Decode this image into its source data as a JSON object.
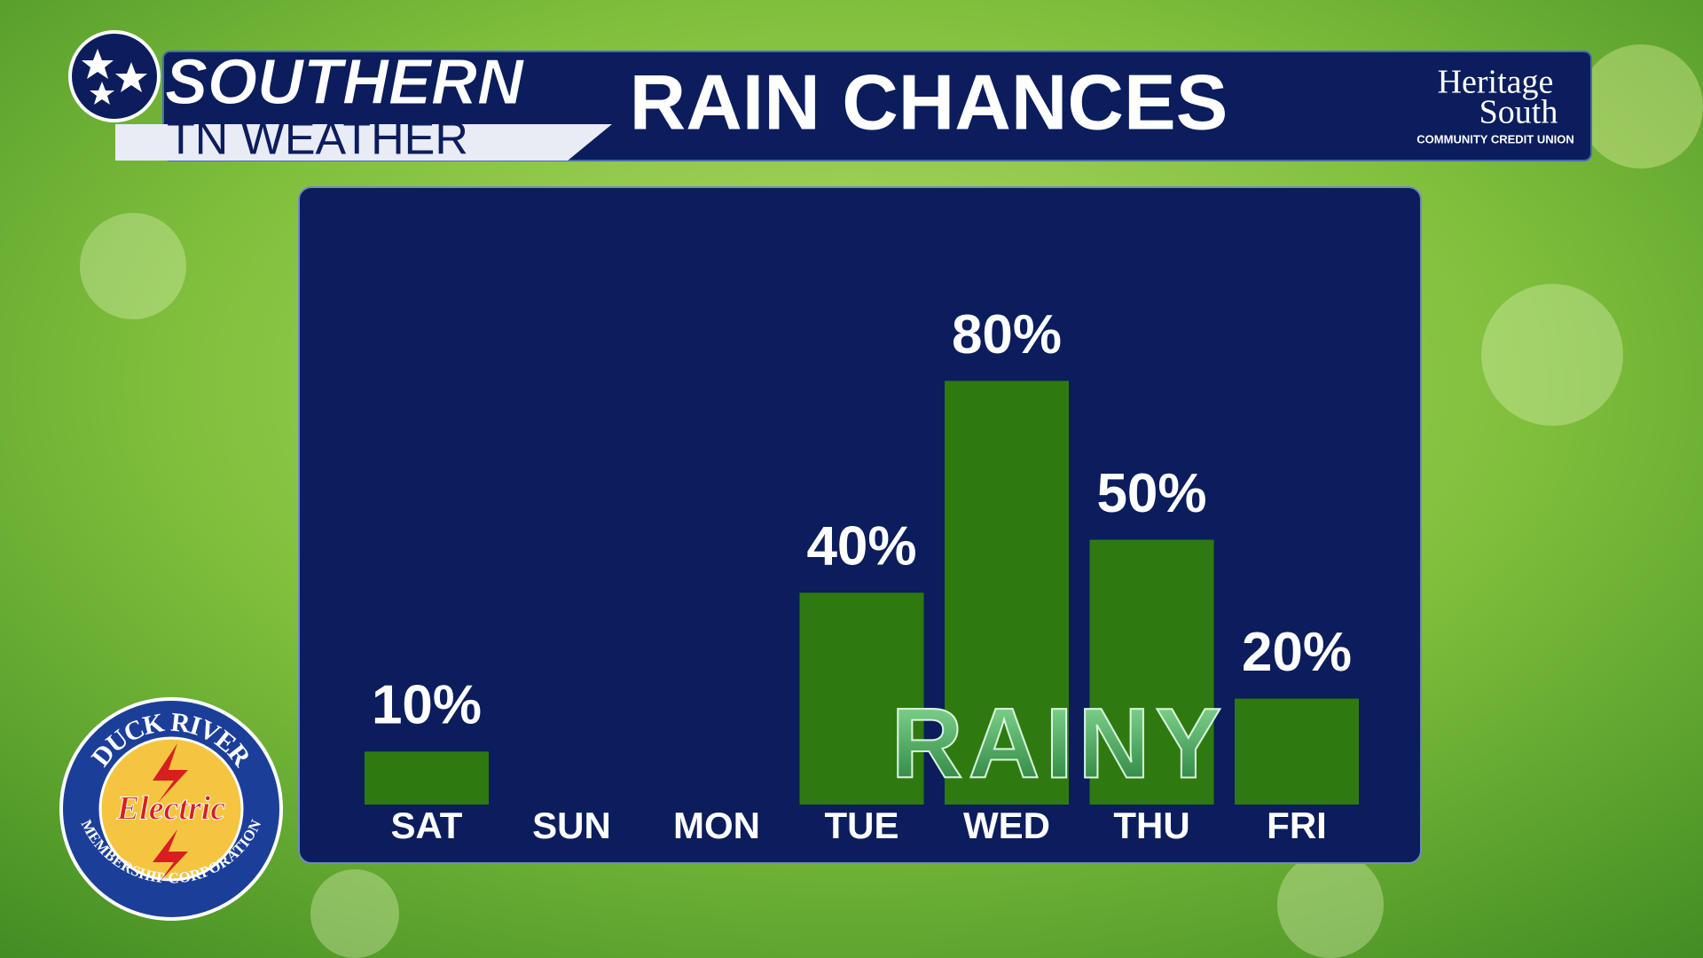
{
  "header": {
    "brand_top": "SOUTHERN",
    "brand_bottom": "TN WEATHER",
    "sponsor_name_1": "Heritage",
    "sponsor_name_2": "South",
    "sponsor_tagline": "COMMUNITY CREDIT UNION"
  },
  "badge": {
    "top": "DUCK RIVER",
    "middle": "Electric",
    "bottom": "MEMBERSHIP CORPORATION"
  },
  "overlay": "RAINY",
  "chart_data": {
    "type": "bar",
    "title": "RAIN CHANCES",
    "categories": [
      "SAT",
      "SUN",
      "MON",
      "TUE",
      "WED",
      "THU",
      "FRI"
    ],
    "values": [
      10,
      0,
      0,
      40,
      80,
      50,
      20
    ],
    "value_labels": [
      "10%",
      null,
      null,
      "40%",
      "80%",
      "50%",
      "20%"
    ],
    "color": "#2f7a10",
    "ylim": [
      0,
      100
    ]
  }
}
